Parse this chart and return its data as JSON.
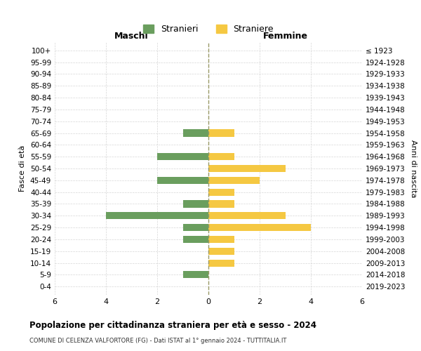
{
  "age_groups": [
    "100+",
    "95-99",
    "90-94",
    "85-89",
    "80-84",
    "75-79",
    "70-74",
    "65-69",
    "60-64",
    "55-59",
    "50-54",
    "45-49",
    "40-44",
    "35-39",
    "30-34",
    "25-29",
    "20-24",
    "15-19",
    "10-14",
    "5-9",
    "0-4"
  ],
  "birth_years": [
    "≤ 1923",
    "1924-1928",
    "1929-1933",
    "1934-1938",
    "1939-1943",
    "1944-1948",
    "1949-1953",
    "1954-1958",
    "1959-1963",
    "1964-1968",
    "1969-1973",
    "1974-1978",
    "1979-1983",
    "1984-1988",
    "1989-1993",
    "1994-1998",
    "1999-2003",
    "2004-2008",
    "2009-2013",
    "2014-2018",
    "2019-2023"
  ],
  "males": [
    0,
    0,
    0,
    0,
    0,
    0,
    0,
    1,
    0,
    2,
    0,
    2,
    0,
    1,
    4,
    1,
    1,
    0,
    0,
    1,
    0
  ],
  "females": [
    0,
    0,
    0,
    0,
    0,
    0,
    0,
    1,
    0,
    1,
    3,
    2,
    1,
    1,
    3,
    4,
    1,
    1,
    1,
    0,
    0
  ],
  "male_color": "#6a9e5e",
  "female_color": "#f5c842",
  "title": "Popolazione per cittadinanza straniera per età e sesso - 2024",
  "subtitle": "COMUNE DI CELENZA VALFORTORE (FG) - Dati ISTAT al 1° gennaio 2024 - TUTTITALIA.IT",
  "legend_male": "Stranieri",
  "legend_female": "Straniere",
  "xlabel_left": "Maschi",
  "xlabel_right": "Femmine",
  "ylabel_left": "Fasce di età",
  "ylabel_right": "Anni di nascita",
  "xlim": 6,
  "background_color": "#ffffff",
  "grid_color": "#cccccc"
}
